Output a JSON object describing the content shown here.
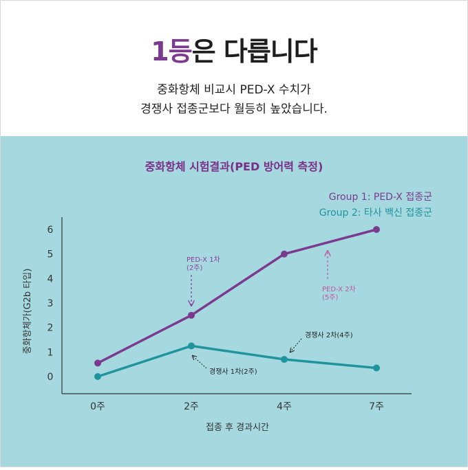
{
  "header": {
    "headline_accent": "1등",
    "headline_rest": "은 다릅니다",
    "subtitle_line1": "중화항체 비교시 PED-X 수치가",
    "subtitle_line2": "경쟁사 접종군보다 월등히 높았습니다."
  },
  "colors": {
    "group1": "#7b3a8e",
    "group2": "#1f949c",
    "title": "#7a2f86",
    "panel_bg": "#a6d8e0"
  },
  "chart_data": {
    "type": "line",
    "title": "중화항체 시험결과(PED 방어력 측정)",
    "xlabel": "접종 후 경과시간",
    "ylabel": "중화항체가(G2b 타입)",
    "categories": [
      "0주",
      "2주",
      "4주",
      "7주"
    ],
    "y_ticks": [
      0,
      1,
      2,
      3,
      4,
      5,
      6
    ],
    "ylim": [
      -0.6,
      6.5
    ],
    "grid": false,
    "legend_position": "top-right",
    "series": [
      {
        "name": "Group 1: PED-X 접종군",
        "values": [
          0.55,
          2.5,
          5.0,
          6.0
        ]
      },
      {
        "name": "Group 2: 타사 백신 접종군",
        "values": [
          0.0,
          1.25,
          0.7,
          0.35
        ]
      }
    ],
    "annotations": [
      {
        "line1": "PED-X 1차",
        "line2": "(2주)"
      },
      {
        "line1": "PED-X 2차",
        "line2": "(5주)"
      },
      {
        "line1": "경쟁사 1차(2주)"
      },
      {
        "line1": "경쟁사 2차(4주)"
      }
    ]
  }
}
